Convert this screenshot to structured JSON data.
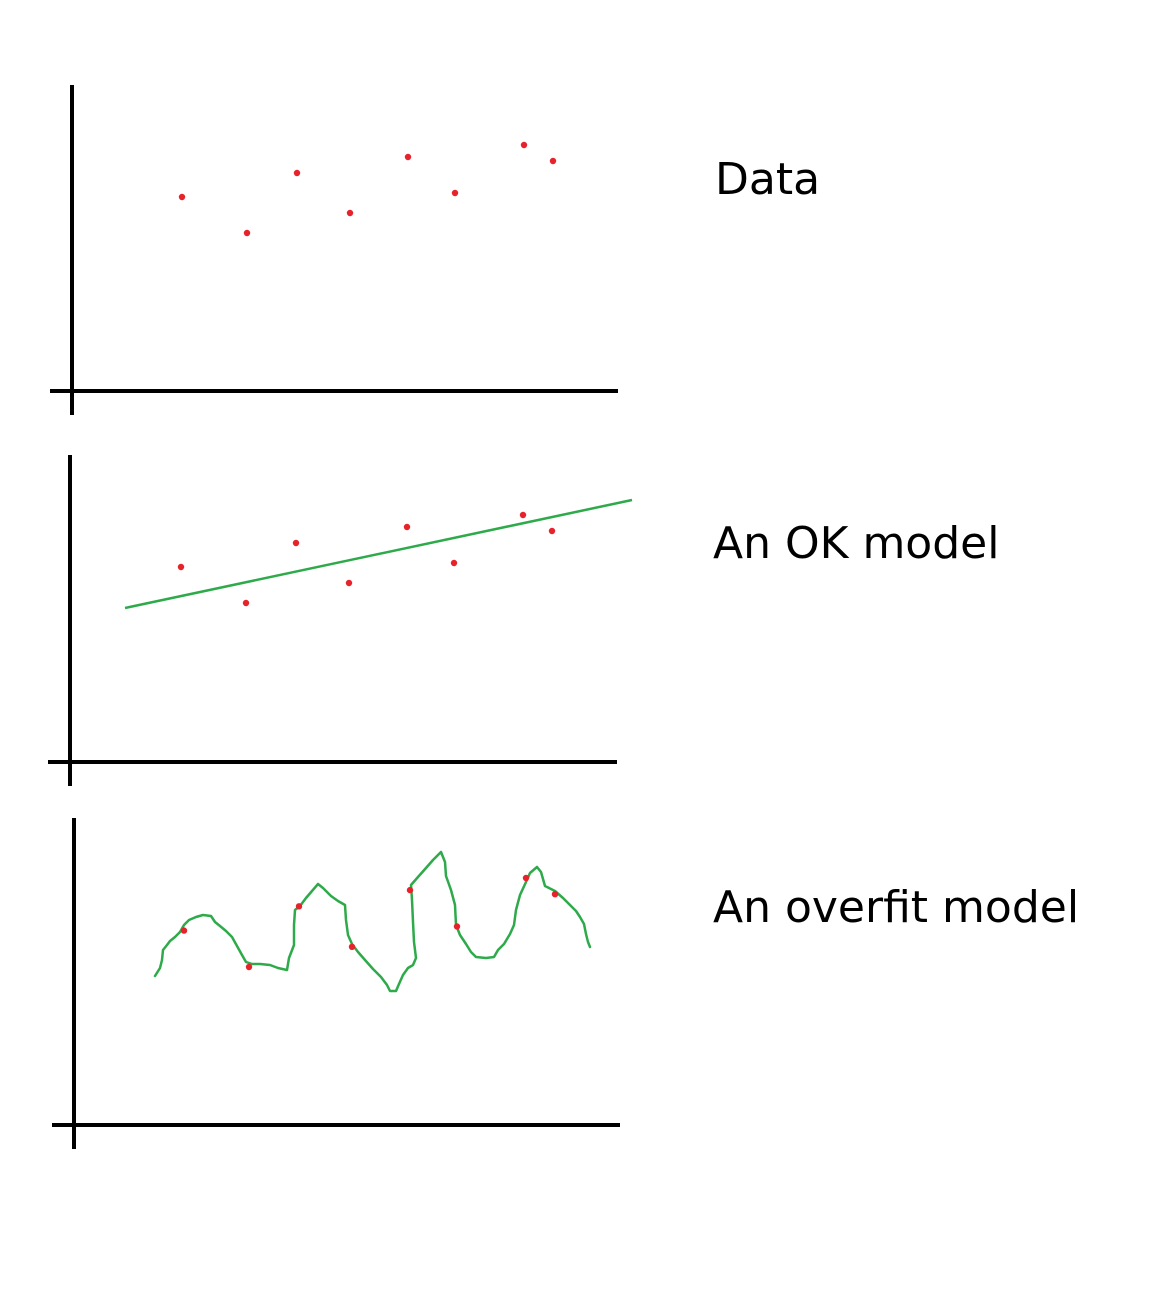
{
  "colors": {
    "background": "#ffffff",
    "axis": "#000000",
    "point": "#e8222b",
    "model_line": "#2eaa4a"
  },
  "panels": [
    {
      "label": "Data",
      "model": "none"
    },
    {
      "label": "An OK model",
      "model": "linear"
    },
    {
      "label": "An overfit model",
      "model": "wiggly"
    }
  ],
  "points": [
    {
      "x": 1,
      "y": 6.3
    },
    {
      "x": 2,
      "y": 5.4
    },
    {
      "x": 3,
      "y": 6.9
    },
    {
      "x": 4,
      "y": 5.9
    },
    {
      "x": 5,
      "y": 7.3
    },
    {
      "x": 6,
      "y": 6.4
    },
    {
      "x": 7,
      "y": 7.6
    },
    {
      "x": 8,
      "y": 7.2
    }
  ]
}
